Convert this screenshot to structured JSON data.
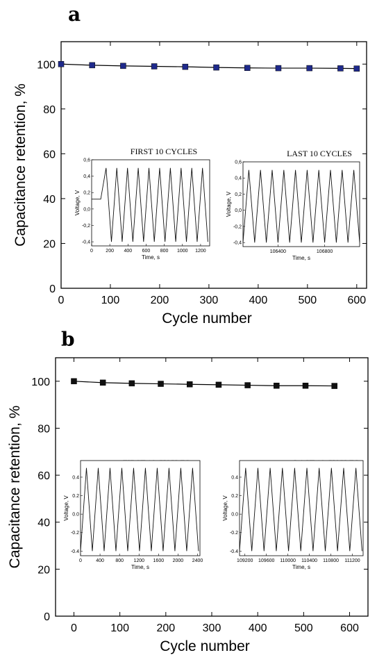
{
  "chart_data": [
    {
      "panel_label": "a",
      "type": "line",
      "xlabel": "Cycle number",
      "ylabel": "Capacitance retention, %",
      "xlim": [
        0,
        620
      ],
      "ylim": [
        0,
        110
      ],
      "x_ticks": [
        0,
        100,
        200,
        300,
        400,
        500,
        600
      ],
      "y_ticks": [
        0,
        20,
        40,
        60,
        80,
        100
      ],
      "marker": "square",
      "marker_color": "#1f2a8c",
      "line_color": "#000000",
      "series": [
        {
          "x": [
            0,
            63,
            126,
            189,
            252,
            315,
            378,
            441,
            504,
            567,
            600
          ],
          "y": [
            100,
            99.5,
            99.2,
            99.0,
            98.8,
            98.5,
            98.3,
            98.2,
            98.2,
            98.1,
            98.0
          ]
        }
      ],
      "insets": [
        {
          "title": "FIRST 10 CYCLES",
          "xlabel": "Time, s",
          "ylabel": "Voltage, V",
          "xlim": [
            0,
            1300
          ],
          "ylim": [
            -0.45,
            0.6
          ],
          "x_ticks": [
            0,
            200,
            400,
            600,
            800,
            1000,
            1200
          ],
          "y_ticks": [
            -0.4,
            -0.2,
            0.0,
            0.2,
            0.4,
            0.6
          ],
          "y_tick_labels": [
            "-0,4",
            "-0,2",
            "0,0",
            "0,2",
            "0,4",
            "0,6"
          ],
          "wave": {
            "start": 0,
            "end": 1280,
            "cycles": 10,
            "high": 0.5,
            "low": -0.4,
            "offset_start": 100,
            "rest_level": 0.12
          }
        },
        {
          "title": "LAST 10 CYCLES",
          "xlabel": "Time, s",
          "ylabel": "Voltage, V",
          "xlim": [
            106100,
            107100
          ],
          "ylim": [
            -0.45,
            0.6
          ],
          "x_ticks": [
            106400,
            106800
          ],
          "y_ticks": [
            -0.4,
            -0.2,
            0.0,
            0.2,
            0.4,
            0.6
          ],
          "y_tick_labels": [
            "-0,4",
            "-0,2",
            "0,0",
            "0,2",
            "0,4",
            "0,6"
          ],
          "wave": {
            "start": 106100,
            "end": 107100,
            "cycles": 10,
            "high": 0.5,
            "low": -0.4
          }
        }
      ]
    },
    {
      "panel_label": "b",
      "type": "line",
      "xlabel": "Cycle number",
      "ylabel": "Capacitance retention, %",
      "xlim": [
        -40,
        640
      ],
      "ylim": [
        0,
        110
      ],
      "x_ticks": [
        0,
        100,
        200,
        300,
        400,
        500,
        600
      ],
      "y_ticks": [
        0,
        20,
        40,
        60,
        80,
        100
      ],
      "marker": "square",
      "marker_color": "#111111",
      "line_color": "#000000",
      "series": [
        {
          "x": [
            0,
            63,
            126,
            189,
            252,
            315,
            378,
            441,
            504,
            567
          ],
          "y": [
            100,
            99.4,
            99.1,
            98.9,
            98.7,
            98.5,
            98.3,
            98.1,
            98.1,
            98.0
          ]
        }
      ],
      "insets": [
        {
          "title": "FIRST 10 CYCLES",
          "xlabel": "Time, s",
          "ylabel": "Voltage, V",
          "xlim": [
            0,
            2450
          ],
          "ylim": [
            -0.45,
            0.58
          ],
          "x_ticks": [
            0,
            400,
            800,
            1200,
            1600,
            2000,
            2400
          ],
          "y_ticks": [
            -0.4,
            -0.2,
            0.0,
            0.2,
            0.4
          ],
          "y_tick_labels": [
            "-0.4",
            "-0.2",
            "0.0",
            "0.2",
            "0.4"
          ],
          "wave": {
            "start": 0,
            "end": 2420,
            "cycles": 10,
            "high": 0.5,
            "low": -0.4
          }
        },
        {
          "title": "LAST 10 CYCLES",
          "xlabel": "Time, s",
          "ylabel": "Voltage, V",
          "xlim": [
            109100,
            111400
          ],
          "ylim": [
            -0.45,
            0.58
          ],
          "x_ticks": [
            109200,
            109600,
            110000,
            110400,
            110800,
            111200
          ],
          "y_ticks": [
            -0.4,
            -0.2,
            0.0,
            0.2,
            0.4
          ],
          "y_tick_labels": [
            "-0.4",
            "-0.2",
            "0.0",
            "0.2",
            "0.4"
          ],
          "wave": {
            "start": 109100,
            "end": 111380,
            "cycles": 10,
            "high": 0.5,
            "low": -0.4
          }
        }
      ]
    }
  ]
}
